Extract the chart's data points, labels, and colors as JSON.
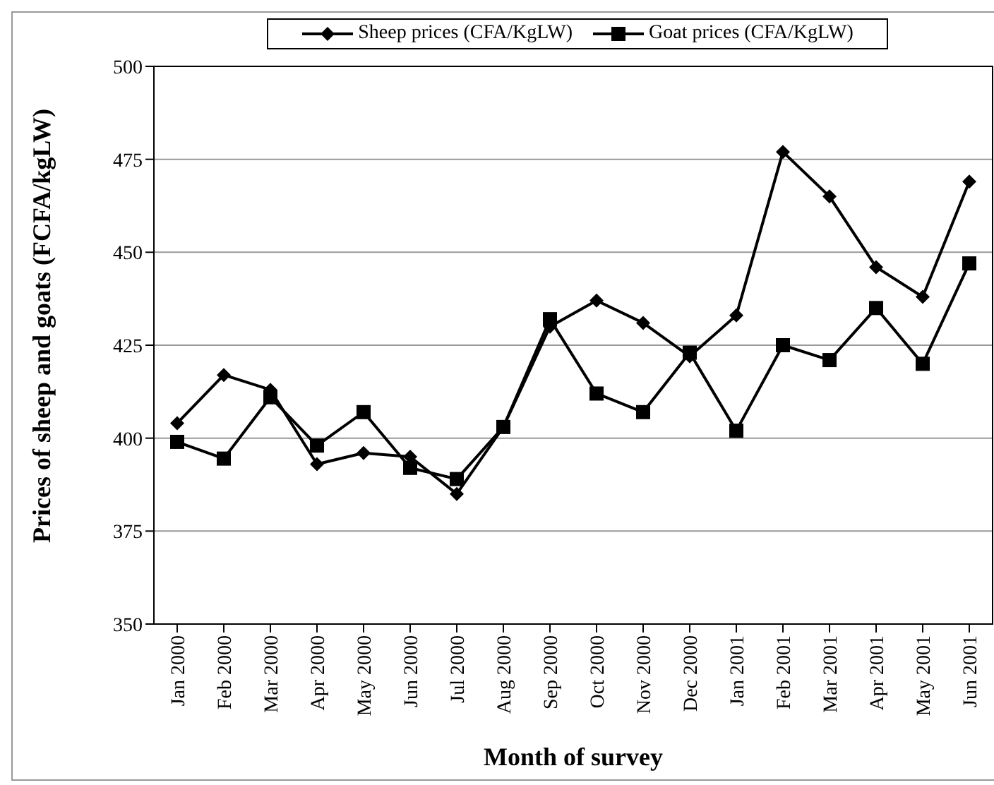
{
  "chart_data": {
    "type": "line",
    "xlabel": "Month of survey",
    "ylabel": "Prices of sheep and goats (FCFA/kgLW)",
    "categories": [
      "Jan 2000",
      "Feb 2000",
      "Mar 2000",
      "Apr 2000",
      "May 2000",
      "Jun 2000",
      "Jul 2000",
      "Aug 2000",
      "Sep 2000",
      "Oct 2000",
      "Nov 2000",
      "Dec 2000",
      "Jan 2001",
      "Feb 2001",
      "Mar 2001",
      "Apr 2001",
      "May 2001",
      "Jun 2001"
    ],
    "series": [
      {
        "name": "Sheep prices (CFA/KgLW)",
        "color": "#000000",
        "marker": "diamond",
        "values": [
          404,
          417,
          413,
          393,
          396,
          395,
          385,
          403,
          430,
          437,
          431,
          422,
          433,
          477,
          465,
          446,
          438,
          469
        ]
      },
      {
        "name": "Goat prices (CFA/KgLW)",
        "color": "#000000",
        "marker": "square",
        "values": [
          399,
          394.5,
          411,
          398,
          407,
          392,
          389,
          403,
          432,
          412,
          407,
          423,
          402,
          425,
          421,
          435,
          420,
          447
        ]
      }
    ],
    "ylim": [
      350,
      500
    ],
    "yticks": [
      350,
      375,
      400,
      425,
      450,
      475,
      500
    ],
    "grid": "y",
    "legend": "top",
    "line_style": "solid"
  }
}
